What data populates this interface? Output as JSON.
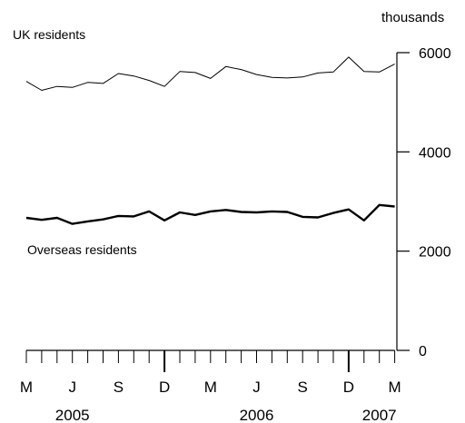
{
  "chart_data": {
    "type": "line",
    "y_unit": "thousands",
    "ylim": [
      0,
      6000
    ],
    "yticks": [
      "0",
      "2000",
      "4000",
      "6000"
    ],
    "x": [
      "2005-03",
      "2005-04",
      "2005-05",
      "2005-06",
      "2005-07",
      "2005-08",
      "2005-09",
      "2005-10",
      "2005-11",
      "2005-12",
      "2006-01",
      "2006-02",
      "2006-03",
      "2006-04",
      "2006-05",
      "2006-06",
      "2006-07",
      "2006-08",
      "2006-09",
      "2006-10",
      "2006-11",
      "2006-12",
      "2007-01",
      "2007-02",
      "2007-03"
    ],
    "month_labels": [
      {
        "text": "M",
        "x": "2005-03"
      },
      {
        "text": "J",
        "x": "2005-06"
      },
      {
        "text": "S",
        "x": "2005-09"
      },
      {
        "text": "D",
        "x": "2005-12"
      },
      {
        "text": "M",
        "x": "2006-03"
      },
      {
        "text": "J",
        "x": "2006-06"
      },
      {
        "text": "S",
        "x": "2006-09"
      },
      {
        "text": "D",
        "x": "2006-12"
      },
      {
        "text": "M",
        "x": "2007-03"
      }
    ],
    "year_labels": [
      {
        "text": "2005",
        "x": "2005-06"
      },
      {
        "text": "2006",
        "x": "2006-06"
      },
      {
        "text": "2007",
        "x": "2007-02"
      }
    ],
    "year_dividers": [
      "2005-12",
      "2006-12"
    ],
    "series": [
      {
        "name": "UK residents",
        "values": [
          5420,
          5240,
          5320,
          5300,
          5400,
          5380,
          5580,
          5530,
          5440,
          5320,
          5620,
          5600,
          5480,
          5720,
          5660,
          5560,
          5500,
          5490,
          5510,
          5590,
          5610,
          5910,
          5620,
          5610,
          5770
        ],
        "style": "thin"
      },
      {
        "name": "Overseas residents",
        "values": [
          2670,
          2630,
          2670,
          2550,
          2600,
          2640,
          2710,
          2700,
          2800,
          2620,
          2780,
          2730,
          2800,
          2830,
          2790,
          2780,
          2800,
          2790,
          2690,
          2680,
          2770,
          2840,
          2620,
          2930,
          2900
        ],
        "style": "thick"
      }
    ]
  }
}
